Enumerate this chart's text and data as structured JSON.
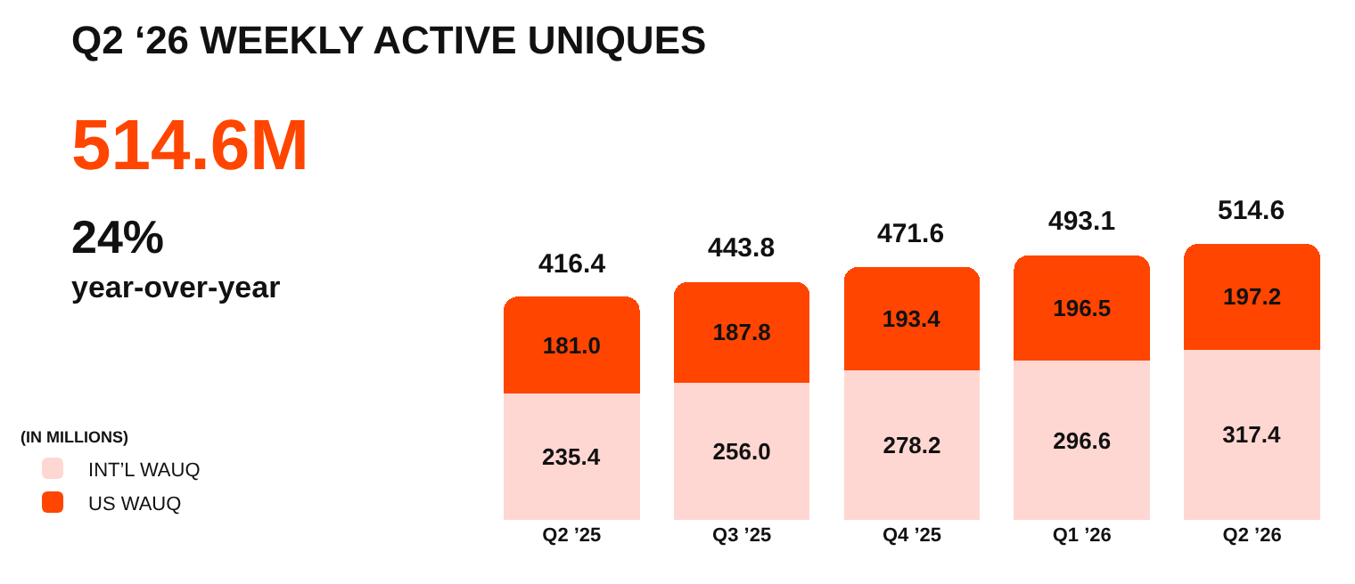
{
  "chart_data": {
    "type": "bar",
    "stacked": true,
    "title": "Q2 ‘26 WEEKLY ACTIVE UNIQUES",
    "annotations": [
      "514.6M",
      "24%",
      "year-over-year"
    ],
    "categories": [
      "Q2 ’25",
      "Q3 ’25",
      "Q4 ’25",
      "Q1 ’26",
      "Q2 ’26"
    ],
    "series": [
      {
        "name": "INT’L WAUQ",
        "color": "#ffd7d2",
        "values": [
          235.4,
          256.0,
          278.2,
          296.6,
          317.4
        ],
        "value_labels": [
          "235.4",
          "256.0",
          "278.2",
          "296.6",
          "317.4"
        ]
      },
      {
        "name": "US WAUQ",
        "color": "#ff4500",
        "values": [
          181.0,
          187.8,
          193.4,
          196.5,
          197.2
        ],
        "value_labels": [
          "181.0",
          "187.8",
          "193.4",
          "196.5",
          "197.2"
        ]
      }
    ],
    "totals": [
      "416.4",
      "443.8",
      "471.6",
      "493.1",
      "514.6"
    ],
    "legend": "bottom left",
    "legend_title": "(IN MILLIONS)"
  }
}
